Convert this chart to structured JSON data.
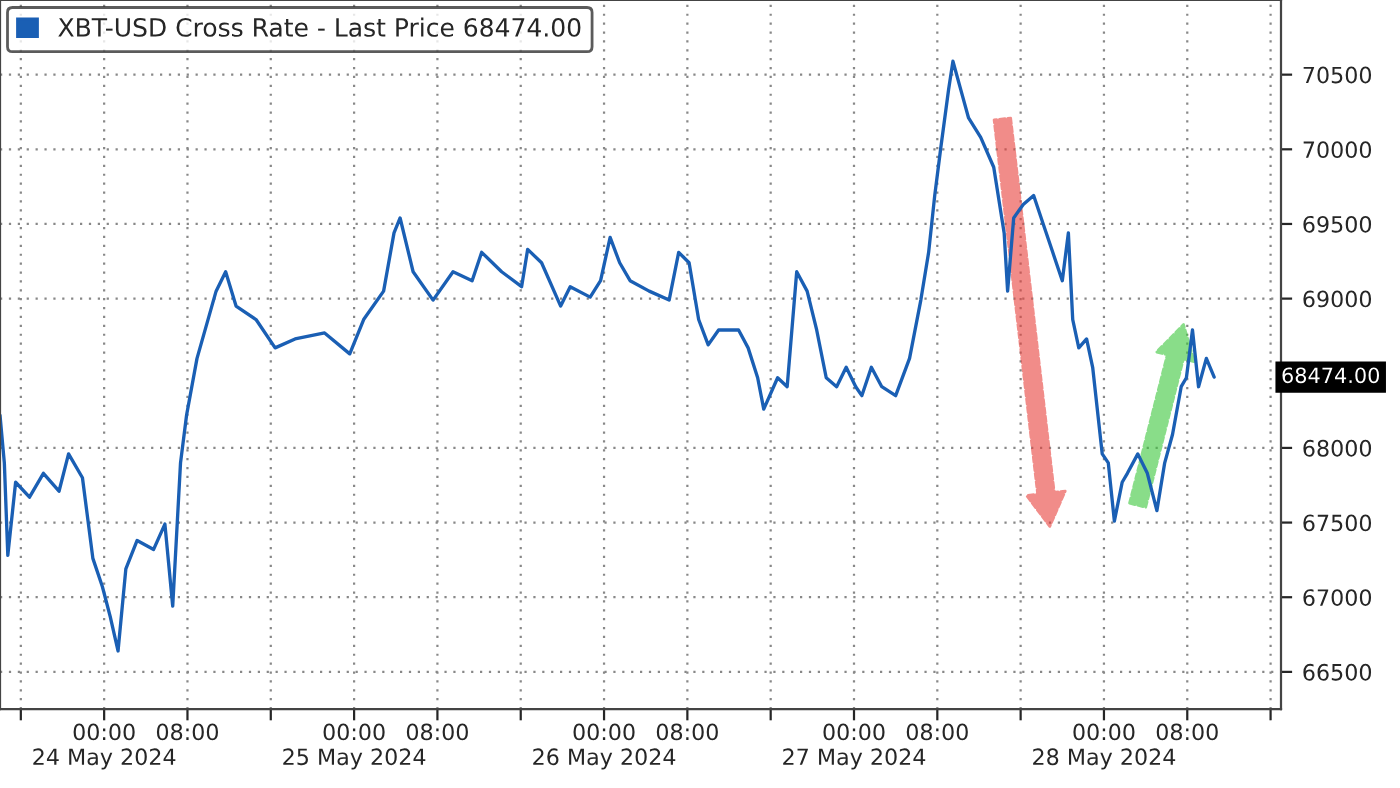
{
  "chart_data": {
    "type": "line",
    "x": [
      "2024-05-23T14:00",
      "2024-05-23T14:25",
      "2024-05-23T14:45",
      "2024-05-23T15:30",
      "2024-05-23T16:50",
      "2024-05-23T18:10",
      "2024-05-23T19:40",
      "2024-05-23T20:35",
      "2024-05-23T21:55",
      "2024-05-23T22:55",
      "2024-05-23T23:50",
      "2024-05-24T00:35",
      "2024-05-24T01:20",
      "2024-05-24T02:05",
      "2024-05-24T03:10",
      "2024-05-24T04:45",
      "2024-05-24T05:50",
      "2024-05-24T06:35",
      "2024-05-24T07:20",
      "2024-05-24T07:55",
      "2024-05-24T08:55",
      "2024-05-24T10:45",
      "2024-05-24T11:40",
      "2024-05-24T12:40",
      "2024-05-24T14:35",
      "2024-05-24T16:25",
      "2024-05-24T18:20",
      "2024-05-24T21:10",
      "2024-05-24T23:35",
      "2024-05-25T00:55",
      "2024-05-25T02:50",
      "2024-05-25T03:50",
      "2024-05-25T04:25",
      "2024-05-25T05:40",
      "2024-05-25T07:35",
      "2024-05-25T09:30",
      "2024-05-25T11:20",
      "2024-05-25T12:15",
      "2024-05-25T14:10",
      "2024-05-25T16:05",
      "2024-05-25T16:40",
      "2024-05-25T18:00",
      "2024-05-25T19:50",
      "2024-05-25T20:45",
      "2024-05-25T22:40",
      "2024-05-25T23:40",
      "2024-05-26T00:35",
      "2024-05-26T01:30",
      "2024-05-26T02:30",
      "2024-05-26T04:20",
      "2024-05-26T06:15",
      "2024-05-26T07:10",
      "2024-05-26T08:10",
      "2024-05-26T09:05",
      "2024-05-26T10:00",
      "2024-05-26T11:00",
      "2024-05-26T12:55",
      "2024-05-26T13:50",
      "2024-05-26T14:45",
      "2024-05-26T15:20",
      "2024-05-26T16:40",
      "2024-05-26T17:35",
      "2024-05-26T18:30",
      "2024-05-26T19:30",
      "2024-05-26T20:25",
      "2024-05-26T21:20",
      "2024-05-26T22:20",
      "2024-05-26T23:15",
      "2024-05-27T00:10",
      "2024-05-27T00:45",
      "2024-05-27T01:40",
      "2024-05-27T02:40",
      "2024-05-27T04:00",
      "2024-05-27T05:20",
      "2024-05-27T06:25",
      "2024-05-27T07:10",
      "2024-05-27T07:45",
      "2024-05-27T08:20",
      "2024-05-27T09:05",
      "2024-05-27T09:30",
      "2024-05-27T10:15",
      "2024-05-27T11:00",
      "2024-05-27T12:10",
      "2024-05-27T13:25",
      "2024-05-27T14:25",
      "2024-05-27T14:45",
      "2024-05-27T15:20",
      "2024-05-27T16:15",
      "2024-05-27T17:15",
      "2024-05-27T18:10",
      "2024-05-27T19:05",
      "2024-05-27T20:00",
      "2024-05-27T20:35",
      "2024-05-27T21:00",
      "2024-05-27T21:35",
      "2024-05-27T22:20",
      "2024-05-27T22:55",
      "2024-05-27T23:50",
      "2024-05-28T00:25",
      "2024-05-28T01:00",
      "2024-05-28T01:45",
      "2024-05-28T02:15",
      "2024-05-28T03:15",
      "2024-05-28T04:10",
      "2024-05-28T05:05",
      "2024-05-28T05:50",
      "2024-05-28T06:35",
      "2024-05-28T07:25",
      "2024-05-28T07:55",
      "2024-05-28T08:30",
      "2024-05-28T09:05",
      "2024-05-28T09:50",
      "2024-05-28T10:35"
    ],
    "series": [
      {
        "name": "XBT-USD Cross Rate - Last Price 68474.00",
        "color": "#1a5fb4",
        "values": [
          68220,
          67900,
          67280,
          67770,
          67670,
          67830,
          67710,
          67960,
          67800,
          67260,
          67070,
          66870,
          66640,
          67190,
          67380,
          67320,
          67490,
          66940,
          67900,
          68220,
          68600,
          69050,
          69180,
          68950,
          68860,
          68670,
          68730,
          68770,
          68630,
          68860,
          69050,
          69440,
          69540,
          69180,
          68990,
          69180,
          69120,
          69310,
          69180,
          69080,
          69330,
          69240,
          68950,
          69080,
          69010,
          69120,
          69410,
          69240,
          69120,
          69050,
          68990,
          69310,
          69240,
          68860,
          68690,
          68790,
          68790,
          68670,
          68470,
          68260,
          68470,
          68410,
          69180,
          69050,
          68790,
          68470,
          68410,
          68540,
          68410,
          68350,
          68540,
          68410,
          68350,
          68600,
          68990,
          69310,
          69690,
          70010,
          70400,
          70590,
          70400,
          70210,
          70080,
          69880,
          69440,
          69050,
          69540,
          69630,
          69690,
          69500,
          69310,
          69120,
          69440,
          68860,
          68670,
          68730,
          68540,
          67960,
          67900,
          67510,
          67770,
          67830,
          67960,
          67830,
          67580,
          67900,
          68090,
          68410,
          68470,
          68790,
          68410,
          68600,
          68474
        ]
      }
    ],
    "xlim": [
      "2024-05-23T14:00",
      "2024-05-28T17:00"
    ],
    "xticks": [
      {
        "value": "2024-05-23T16:00",
        "label": null
      },
      {
        "value": "2024-05-24T00:00",
        "label": "00:00\n24 May 2024"
      },
      {
        "value": "2024-05-24T08:00",
        "label": "08:00"
      },
      {
        "value": "2024-05-24T16:00",
        "label": null
      },
      {
        "value": "2024-05-25T00:00",
        "label": "00:00\n25 May 2024"
      },
      {
        "value": "2024-05-25T08:00",
        "label": "08:00"
      },
      {
        "value": "2024-05-25T16:00",
        "label": null
      },
      {
        "value": "2024-05-26T00:00",
        "label": "00:00\n26 May 2024"
      },
      {
        "value": "2024-05-26T08:00",
        "label": "08:00"
      },
      {
        "value": "2024-05-26T16:00",
        "label": null
      },
      {
        "value": "2024-05-27T00:00",
        "label": "00:00\n27 May 2024"
      },
      {
        "value": "2024-05-27T08:00",
        "label": "08:00"
      },
      {
        "value": "2024-05-27T16:00",
        "label": null
      },
      {
        "value": "2024-05-28T00:00",
        "label": "00:00\n28 May 2024"
      },
      {
        "value": "2024-05-28T08:00",
        "label": "08:00"
      },
      {
        "value": "2024-05-28T16:00",
        "label": null
      }
    ],
    "ylim": [
      66250,
      71000
    ],
    "yticks": [
      66500,
      67000,
      67500,
      68000,
      69000,
      69500,
      70000,
      70500
    ],
    "annotations": [
      "68474.00"
    ],
    "grid": true,
    "legend": "top left"
  }
}
